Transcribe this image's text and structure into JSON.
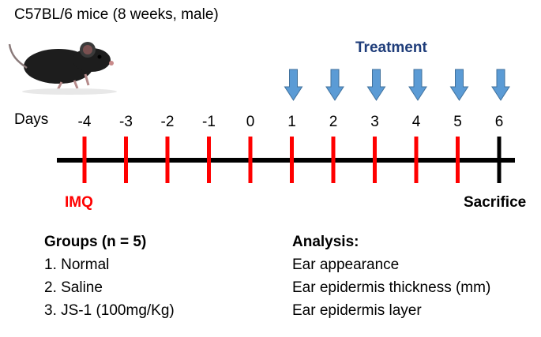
{
  "title": "C57BL/6  mice (8 weeks, male)",
  "treatment_label": "Treatment",
  "days_label": "Days",
  "timeline": {
    "days": [
      "-4",
      "-3",
      "-2",
      "-1",
      "0",
      "1",
      "2",
      "3",
      "4",
      "5",
      "6"
    ],
    "treatment_days": [
      "1",
      "2",
      "3",
      "4",
      "5",
      "6"
    ],
    "sacrifice_day": "6"
  },
  "imq_label": "IMQ",
  "sacrifice_label": "Sacrifice",
  "groups": {
    "heading": "Groups (n = 5)",
    "items": [
      "1. Normal",
      "2. Saline",
      "3. JS-1 (100mg/Kg)"
    ]
  },
  "analysis": {
    "heading": "Analysis:",
    "items": [
      "Ear appearance",
      "Ear epidermis thickness (mm)",
      "Ear epidermis layer"
    ]
  },
  "colors": {
    "tick": "#ff0000",
    "sacrifice_tick": "#000000",
    "imq": "#ff0000",
    "treatment": "#1f3d7a",
    "arrow": "#5b9bd5",
    "arrow_stroke": "#41719c",
    "axis": "#000000"
  }
}
